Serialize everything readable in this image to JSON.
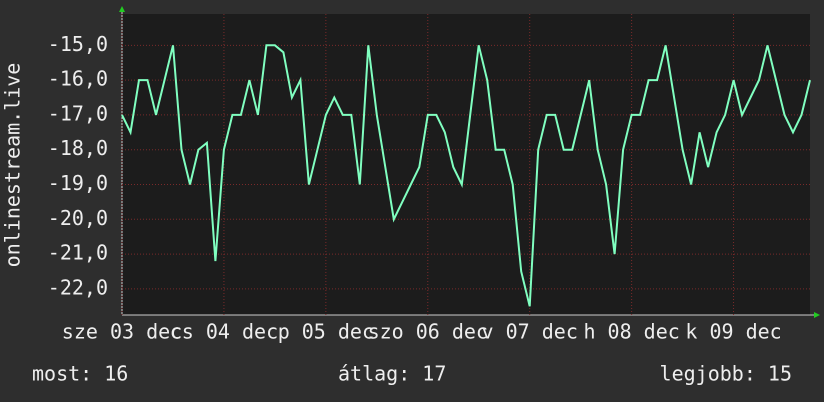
{
  "chart_data": {
    "type": "line",
    "ylabel": "onlinestream.live",
    "categories": [
      "sze 03 dec",
      null,
      null,
      null,
      null,
      null,
      null,
      null,
      null,
      null,
      null,
      null,
      "cs 04 dec",
      null,
      null,
      null,
      null,
      null,
      null,
      null,
      null,
      null,
      null,
      null,
      "p 05 dec",
      null,
      null,
      null,
      null,
      null,
      null,
      null,
      null,
      null,
      null,
      null,
      "szo 06 dec",
      null,
      null,
      null,
      null,
      null,
      null,
      null,
      null,
      null,
      null,
      null,
      "v 07 dec",
      null,
      null,
      null,
      null,
      null,
      null,
      null,
      null,
      null,
      null,
      null,
      "h 08 dec",
      null,
      null,
      null,
      null,
      null,
      null,
      null,
      null,
      null,
      null,
      null,
      "k 09 dec",
      null,
      null,
      null,
      null,
      null,
      null,
      null,
      null,
      null
    ],
    "series": [
      {
        "color": "#80ffc0",
        "values": [
          -17,
          -17.5,
          -16,
          -16,
          -17,
          -16,
          -15,
          -18,
          -19,
          -18,
          -17.8,
          -21.2,
          -18,
          -17,
          -17,
          -16,
          -17,
          -15,
          -15,
          -15.2,
          -16.5,
          -16,
          -19,
          -18,
          -17,
          -16.5,
          -17,
          -17,
          -19,
          -15,
          -17,
          -18.5,
          -20,
          -19.5,
          -19,
          -18.5,
          -17,
          -17,
          -17.5,
          -18.5,
          -19,
          -17,
          -15,
          -16,
          -18,
          -18,
          -19,
          -21.5,
          -22.5,
          -18,
          -17,
          -17,
          -18,
          -18,
          -17,
          -16,
          -18,
          -19,
          -21,
          -18,
          -17,
          -17,
          -16,
          -16,
          -15,
          -16.5,
          -18,
          -19,
          -17.5,
          -18.5,
          -17.5,
          -17,
          -16,
          -17,
          -16.5,
          -16,
          -15,
          -16,
          -17,
          -17.5,
          -17,
          -16
        ]
      }
    ],
    "ylim": [
      -22.75,
      -14.1
    ],
    "yticks": [
      {
        "value": -22,
        "label": "-22,0"
      },
      {
        "value": -21,
        "label": "-21,0"
      },
      {
        "value": -20,
        "label": "-20,0"
      },
      {
        "value": -19,
        "label": "-19,0"
      },
      {
        "value": -18,
        "label": "-18,0"
      },
      {
        "value": -17,
        "label": "-17,0"
      },
      {
        "value": -16,
        "label": "-16,0"
      },
      {
        "value": -15,
        "label": "-15,0"
      }
    ],
    "grid": true,
    "footer": {
      "current": "most: 16",
      "average": "átlag: 17",
      "best": "legjobb: 15"
    }
  }
}
